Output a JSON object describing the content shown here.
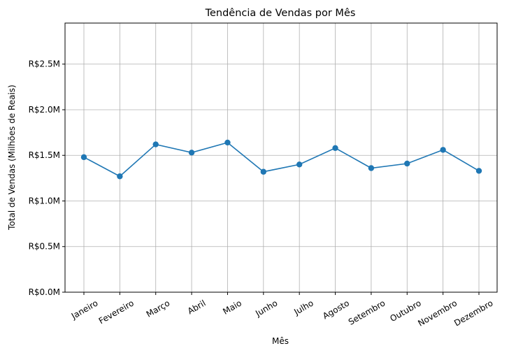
{
  "chart_data": {
    "type": "line",
    "title": "Tendência de Vendas por Mês",
    "xlabel": "Mês",
    "ylabel": "Total de Vendas (Milhões de Reais)",
    "categories": [
      "Janeiro",
      "Fevereiro",
      "Março",
      "Abril",
      "Maio",
      "Junho",
      "Julho",
      "Agosto",
      "Setembro",
      "Outubro",
      "Novembro",
      "Dezembro"
    ],
    "series": [
      {
        "values": [
          1.48,
          1.27,
          1.62,
          1.53,
          1.64,
          1.32,
          1.4,
          1.58,
          1.36,
          1.41,
          1.56,
          1.33
        ],
        "color": "#1f77b4",
        "marker": "circle"
      }
    ],
    "ylim": [
      0,
      2.95
    ],
    "yticks": [
      0.0,
      0.5,
      1.0,
      1.5,
      2.0,
      2.5
    ],
    "ytick_labels": [
      "R$0.0M",
      "R$0.5M",
      "R$1.0M",
      "R$1.5M",
      "R$2.0M",
      "R$2.5M"
    ],
    "grid": true,
    "xtick_rotation": 30
  }
}
